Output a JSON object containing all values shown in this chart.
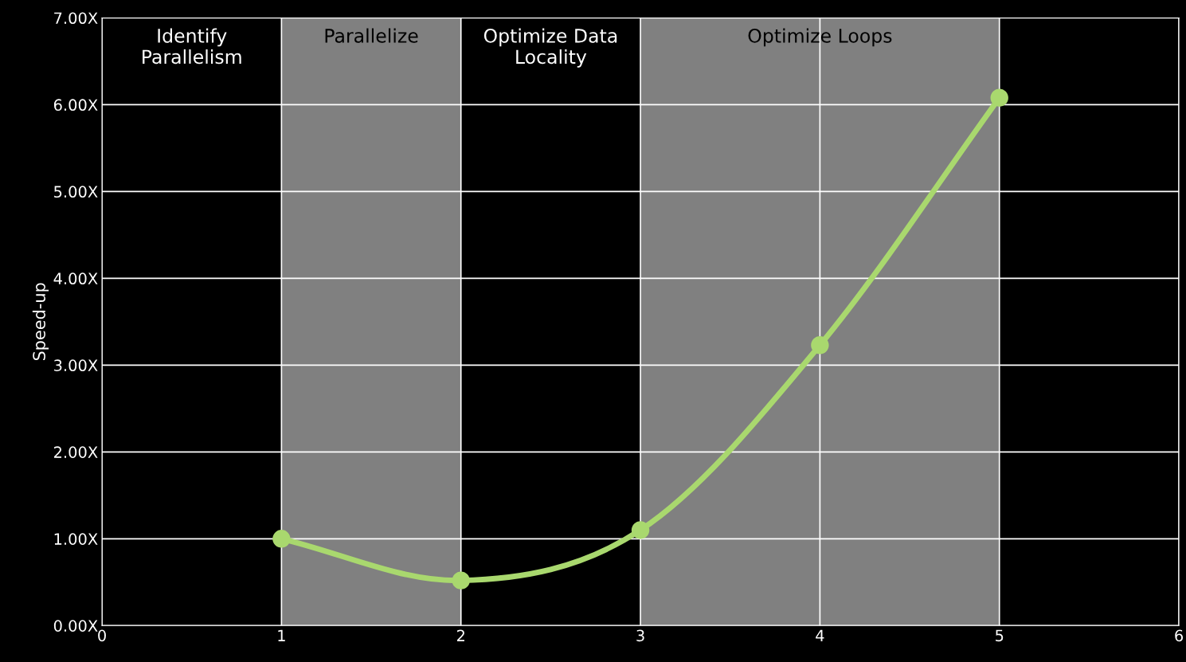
{
  "chart_data": {
    "type": "line",
    "ylabel": "Speed-up",
    "x": [
      1,
      2,
      3,
      4,
      5
    ],
    "series": [
      {
        "color": "#a9d86e",
        "values": [
          1.0,
          0.52,
          1.1,
          3.23,
          6.08
        ]
      }
    ],
    "marker": "circle",
    "xlim": [
      0,
      6
    ],
    "xticks": [
      0,
      1,
      2,
      3,
      4,
      5,
      6
    ],
    "ylim": [
      0,
      7
    ],
    "yticks": [
      {
        "value": 0,
        "label": "0.00X"
      },
      {
        "value": 1,
        "label": "1.00X"
      },
      {
        "value": 2,
        "label": "2.00X"
      },
      {
        "value": 3,
        "label": "3.00X"
      },
      {
        "value": 4,
        "label": "4.00X"
      },
      {
        "value": 5,
        "label": "5.00X"
      },
      {
        "value": 6,
        "label": "6.00X"
      },
      {
        "value": 7,
        "label": "7.00X"
      }
    ],
    "grid": true,
    "annotations": [
      "Identify\nParallelism",
      "Optimize Data\nLocality"
    ],
    "bands": [
      {
        "axis": "x",
        "from": 1,
        "to": 2,
        "label": "Parallelize",
        "color": "#808080"
      },
      {
        "axis": "x",
        "from": 3,
        "to": 5,
        "label": "Optimize Loops",
        "color": "#808080"
      }
    ]
  }
}
